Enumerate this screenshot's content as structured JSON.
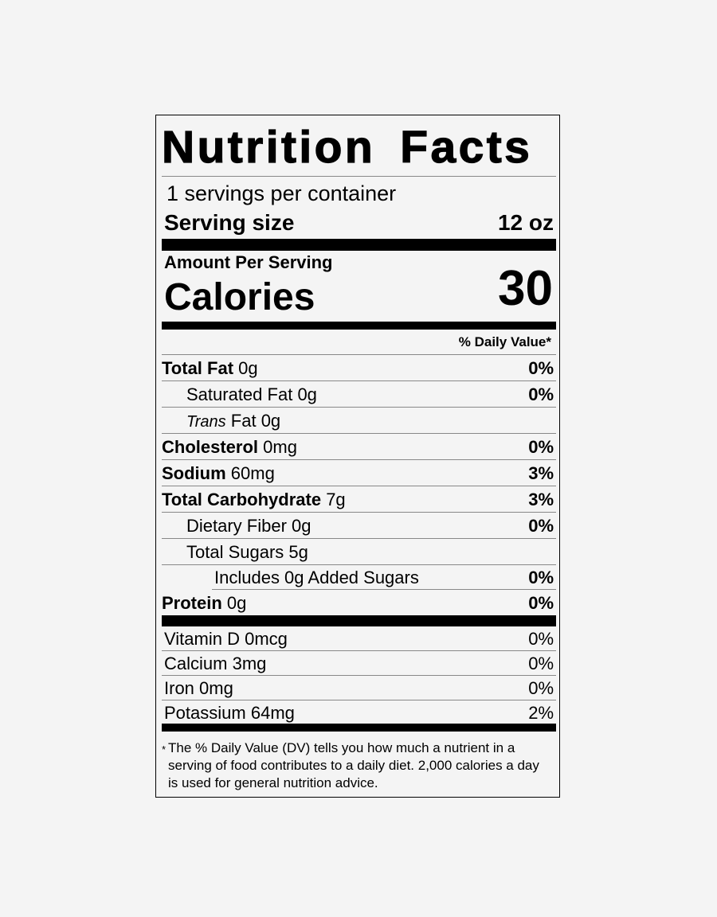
{
  "title": "Nutrition Facts",
  "servings_per_container": "1 servings per container",
  "serving_size": {
    "label": "Serving size",
    "value": "12 oz"
  },
  "amount_per_serving": "Amount Per Serving",
  "calories": {
    "label": "Calories",
    "value": "30"
  },
  "daily_value_header": "% Daily Value*",
  "nutrients": [
    {
      "name": "Total Fat",
      "amount": "0g",
      "dv": "0%"
    },
    {
      "name": "Saturated Fat",
      "amount": "0g",
      "dv": "0%"
    },
    {
      "name_italic": "Trans",
      "name": "Fat",
      "amount": "0g"
    },
    {
      "name": "Cholesterol",
      "amount": "0mg",
      "dv": "0%"
    },
    {
      "name": "Sodium",
      "amount": "60mg",
      "dv": "3%"
    },
    {
      "name": "Total Carbohydrate",
      "amount": "7g",
      "dv": "3%"
    },
    {
      "name": "Dietary Fiber",
      "amount": "0g",
      "dv": "0%"
    },
    {
      "name": "Total Sugars",
      "amount": "5g"
    },
    {
      "name": "Includes 0g Added Sugars",
      "dv": "0%"
    },
    {
      "name": "Protein",
      "amount": "0g",
      "dv": "0%"
    }
  ],
  "vitamins": [
    {
      "name": "Vitamin D",
      "amount": "0mcg",
      "dv": "0%"
    },
    {
      "name": "Calcium",
      "amount": "3mg",
      "dv": "0%"
    },
    {
      "name": "Iron",
      "amount": "0mg",
      "dv": "0%"
    },
    {
      "name": "Potassium",
      "amount": "64mg",
      "dv": "2%"
    }
  ],
  "footnote": {
    "marker": "*",
    "text": "The % Daily Value (DV) tells you how much a nutrient in a serving of food contributes to a daily diet. 2,000 calories a day is used for general nutrition advice."
  }
}
